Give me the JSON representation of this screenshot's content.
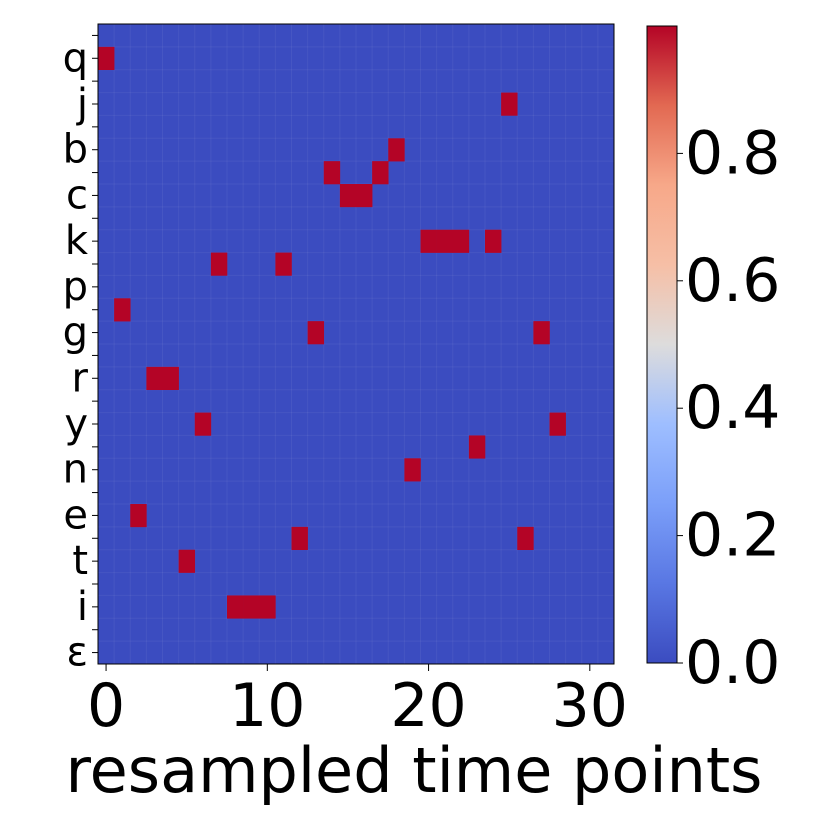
{
  "chart_data": {
    "type": "heatmap",
    "title": "",
    "xlabel": "resampled time points",
    "ylabel": "",
    "x_range": [
      0,
      31
    ],
    "x_ticks": [
      0,
      10,
      20,
      30
    ],
    "y_categories": [
      "",
      "q",
      "",
      "j",
      "",
      "b",
      "",
      "c",
      "",
      "k",
      "",
      "p",
      "",
      "g",
      "",
      "r",
      "",
      "y",
      "",
      "n",
      "",
      "e",
      "",
      "t",
      "",
      "i",
      "",
      "ε"
    ],
    "n_columns": 32,
    "colormap": "coolwarm",
    "colorbar": {
      "range": [
        0.0,
        1.0
      ],
      "ticks": [
        0.0,
        0.2,
        0.4,
        0.6,
        0.8
      ],
      "tick_labels": [
        "0.0",
        "0.2",
        "0.4",
        "0.6",
        "0.8"
      ]
    },
    "background_value": 0.0,
    "active_value": 1.0,
    "active_cells": [
      {
        "x": 0,
        "row": 1
      },
      {
        "x": 25,
        "row": 3
      },
      {
        "x": 18,
        "row": 5
      },
      {
        "x": 14,
        "row": 6
      },
      {
        "x": 17,
        "row": 6
      },
      {
        "x": 15,
        "row": 7
      },
      {
        "x": 16,
        "row": 7
      },
      {
        "x": 20,
        "row": 9
      },
      {
        "x": 21,
        "row": 9
      },
      {
        "x": 22,
        "row": 9
      },
      {
        "x": 24,
        "row": 9
      },
      {
        "x": 7,
        "row": 10
      },
      {
        "x": 11,
        "row": 10
      },
      {
        "x": 1,
        "row": 12
      },
      {
        "x": 13,
        "row": 13
      },
      {
        "x": 27,
        "row": 13
      },
      {
        "x": 3,
        "row": 15
      },
      {
        "x": 4,
        "row": 15
      },
      {
        "x": 6,
        "row": 17
      },
      {
        "x": 28,
        "row": 17
      },
      {
        "x": 23,
        "row": 18
      },
      {
        "x": 19,
        "row": 19
      },
      {
        "x": 2,
        "row": 21
      },
      {
        "x": 12,
        "row": 22
      },
      {
        "x": 26,
        "row": 22
      },
      {
        "x": 5,
        "row": 23
      },
      {
        "x": 8,
        "row": 25
      },
      {
        "x": 9,
        "row": 25
      },
      {
        "x": 10,
        "row": 25
      }
    ],
    "colors": {
      "low": "#3b4cc0",
      "high": "#b40426"
    }
  }
}
